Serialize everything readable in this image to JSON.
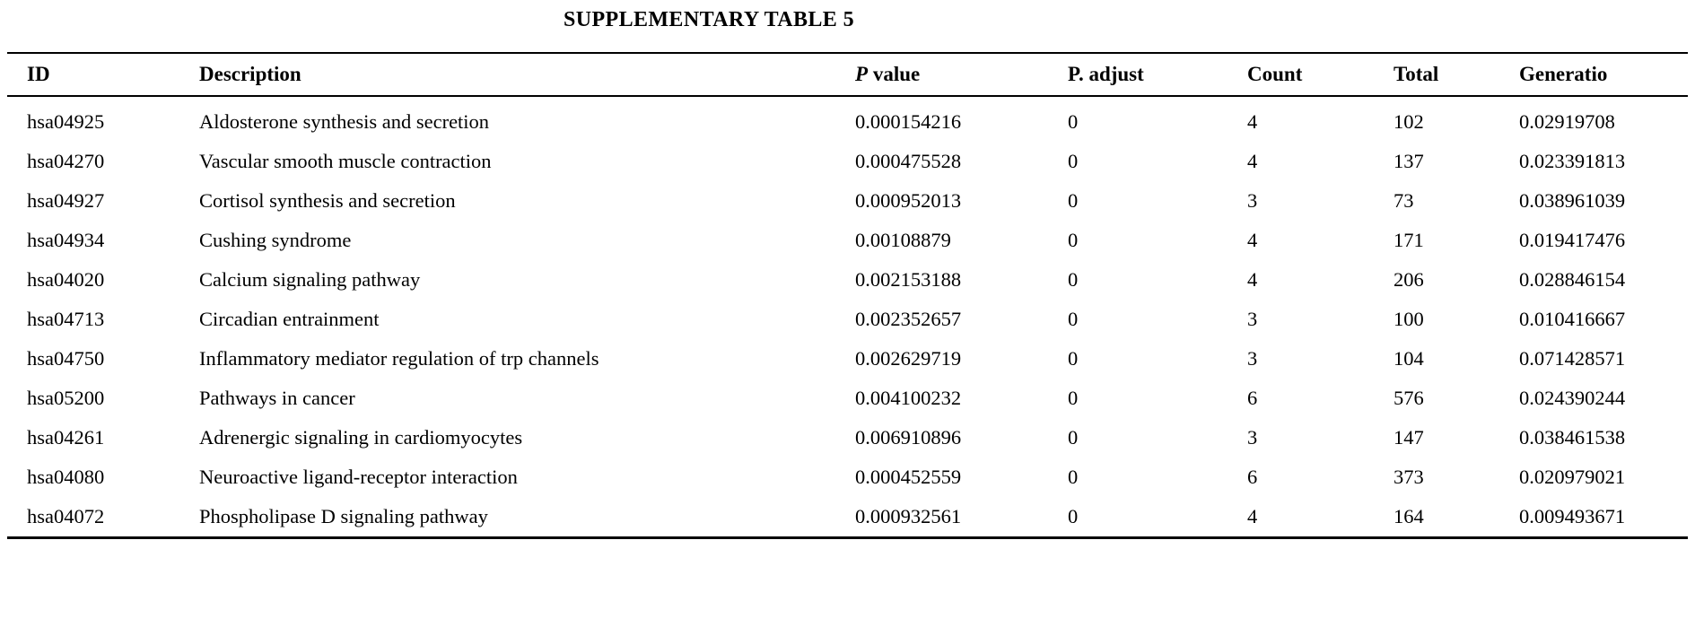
{
  "page": {
    "title": "SUPPLEMENTARY TABLE 5"
  },
  "table": {
    "columns": [
      {
        "key": "id",
        "label": "ID",
        "italic_first": false
      },
      {
        "key": "description",
        "label": "Description",
        "italic_first": false
      },
      {
        "key": "p_value",
        "label": "P value",
        "italic_first": true
      },
      {
        "key": "p_adjust",
        "label": "P. adjust",
        "italic_first": false
      },
      {
        "key": "count",
        "label": "Count",
        "italic_first": false
      },
      {
        "key": "total",
        "label": "Total",
        "italic_first": false
      },
      {
        "key": "generatio",
        "label": "Generatio",
        "italic_first": false
      }
    ],
    "rows": [
      {
        "id": "hsa04925",
        "description": "Aldosterone synthesis and secretion",
        "p_value": "0.000154216",
        "p_adjust": "0",
        "count": "4",
        "total": "102",
        "generatio": "0.02919708"
      },
      {
        "id": "hsa04270",
        "description": "Vascular smooth muscle contraction",
        "p_value": "0.000475528",
        "p_adjust": "0",
        "count": "4",
        "total": "137",
        "generatio": "0.023391813"
      },
      {
        "id": "hsa04927",
        "description": "Cortisol synthesis and secretion",
        "p_value": "0.000952013",
        "p_adjust": "0",
        "count": "3",
        "total": "73",
        "generatio": "0.038961039"
      },
      {
        "id": "hsa04934",
        "description": "Cushing syndrome",
        "p_value": "0.00108879",
        "p_adjust": "0",
        "count": "4",
        "total": "171",
        "generatio": "0.019417476"
      },
      {
        "id": "hsa04020",
        "description": "Calcium signaling pathway",
        "p_value": "0.002153188",
        "p_adjust": "0",
        "count": "4",
        "total": "206",
        "generatio": "0.028846154"
      },
      {
        "id": "hsa04713",
        "description": "Circadian entrainment",
        "p_value": "0.002352657",
        "p_adjust": "0",
        "count": "3",
        "total": "100",
        "generatio": "0.010416667"
      },
      {
        "id": "hsa04750",
        "description": "Inflammatory mediator regulation of trp channels",
        "p_value": "0.002629719",
        "p_adjust": "0",
        "count": "3",
        "total": "104",
        "generatio": "0.071428571"
      },
      {
        "id": "hsa05200",
        "description": "Pathways in cancer",
        "p_value": "0.004100232",
        "p_adjust": "0",
        "count": "6",
        "total": "576",
        "generatio": "0.024390244"
      },
      {
        "id": "hsa04261",
        "description": "Adrenergic signaling in cardiomyocytes",
        "p_value": "0.006910896",
        "p_adjust": "0",
        "count": "3",
        "total": "147",
        "generatio": "0.038461538"
      },
      {
        "id": "hsa04080",
        "description": "Neuroactive ligand-receptor interaction",
        "p_value": "0.000452559",
        "p_adjust": "0",
        "count": "6",
        "total": "373",
        "generatio": "0.020979021"
      },
      {
        "id": "hsa04072",
        "description": "Phospholipase D signaling pathway",
        "p_value": "0.000932561",
        "p_adjust": "0",
        "count": "4",
        "total": "164",
        "generatio": "0.009493671"
      }
    ]
  }
}
